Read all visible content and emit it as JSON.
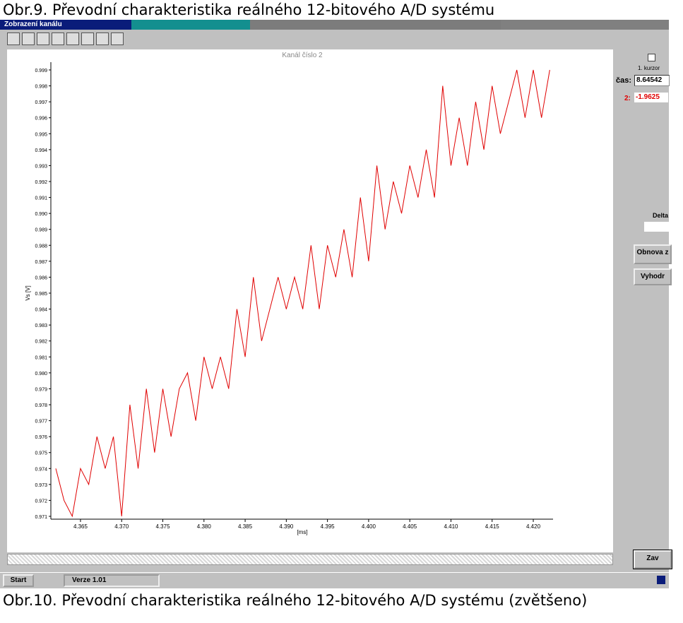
{
  "caption_top": "Obr.9. Převodní charakteristika reálného 12-bitového A/D systému",
  "window": {
    "title": "Zobrazení kanálu"
  },
  "chart_data": {
    "type": "line",
    "title": "Kanál číslo 2",
    "x_label": "[ms]",
    "y_label": "Vs [V]",
    "x": [
      4.362,
      4.363,
      4.364,
      4.365,
      4.366,
      4.367,
      4.368,
      4.369,
      4.37,
      4.371,
      4.372,
      4.373,
      4.374,
      4.375,
      4.376,
      4.377,
      4.378,
      4.379,
      4.38,
      4.381,
      4.382,
      4.383,
      4.384,
      4.385,
      4.386,
      4.387,
      4.388,
      4.389,
      4.39,
      4.391,
      4.392,
      4.393,
      4.394,
      4.395,
      4.396,
      4.397,
      4.398,
      4.399,
      4.4,
      4.401,
      4.402,
      4.403,
      4.404,
      4.405,
      4.406,
      4.407,
      4.408,
      4.409,
      4.41,
      4.411,
      4.412,
      4.413,
      4.414,
      4.415,
      4.416,
      4.417,
      4.418,
      4.419,
      4.42,
      4.421,
      4.422
    ],
    "series": [
      {
        "name": "Vs",
        "color": "#e00000",
        "values": [
          0.974,
          0.972,
          0.971,
          0.974,
          0.973,
          0.976,
          0.974,
          0.976,
          0.971,
          0.978,
          0.974,
          0.979,
          0.975,
          0.979,
          0.976,
          0.979,
          0.98,
          0.977,
          0.981,
          0.979,
          0.981,
          0.979,
          0.984,
          0.981,
          0.986,
          0.982,
          0.984,
          0.986,
          0.984,
          0.986,
          0.984,
          0.988,
          0.984,
          0.988,
          0.986,
          0.989,
          0.986,
          0.991,
          0.987,
          0.993,
          0.989,
          0.992,
          0.99,
          0.993,
          0.991,
          0.994,
          0.991,
          0.998,
          0.993,
          0.996,
          0.993,
          0.997,
          0.994,
          0.998,
          0.995,
          0.997,
          0.999,
          0.996,
          0.999,
          0.996,
          0.999
        ]
      }
    ],
    "xlim": [
      4.3614,
      4.4224
    ],
    "xticks": [
      4.365,
      {
        "value": 4.37,
        "label": "4.370"
      },
      4.375,
      {
        "value": 4.38,
        "label": "4.380"
      },
      4.385,
      {
        "value": 4.39,
        "label": "4.390"
      },
      4.395,
      {
        "value": 4.4,
        "label": "4.400"
      },
      4.405,
      {
        "value": 4.41,
        "label": "4.410"
      },
      4.415,
      {
        "value": 4.42,
        "label": "4.420"
      }
    ],
    "ylim": [
      0.971,
      0.999
    ],
    "yticks": [
      0.971,
      0.972,
      0.973,
      0.974,
      0.975,
      0.976,
      0.977,
      0.978,
      0.979,
      {
        "value": 0.98,
        "label": "0.980"
      },
      0.981,
      0.982,
      0.983,
      0.984,
      0.985,
      0.986,
      0.987,
      0.988,
      0.989,
      {
        "value": 0.99,
        "label": "0.990"
      },
      0.991,
      0.992,
      0.993,
      0.994,
      0.995,
      0.996,
      0.997,
      0.998,
      0.999
    ],
    "grid": false
  },
  "panel": {
    "cursor": "1. kurzor",
    "time_label": "čas:",
    "time_value": "8.64542",
    "channel_label": "2:",
    "channel_value": "-1.9625",
    "delta": "Delta",
    "refresh_button": "Obnova z",
    "evaluate_button": "Vyhodr",
    "close_button": "Zav"
  },
  "taskbar": {
    "start": "Start",
    "task": "Verze 1.01"
  },
  "caption_bottom": "Obr.10. Převodní charakteristika reálného 12-bitového A/D systému (zvětšeno)"
}
